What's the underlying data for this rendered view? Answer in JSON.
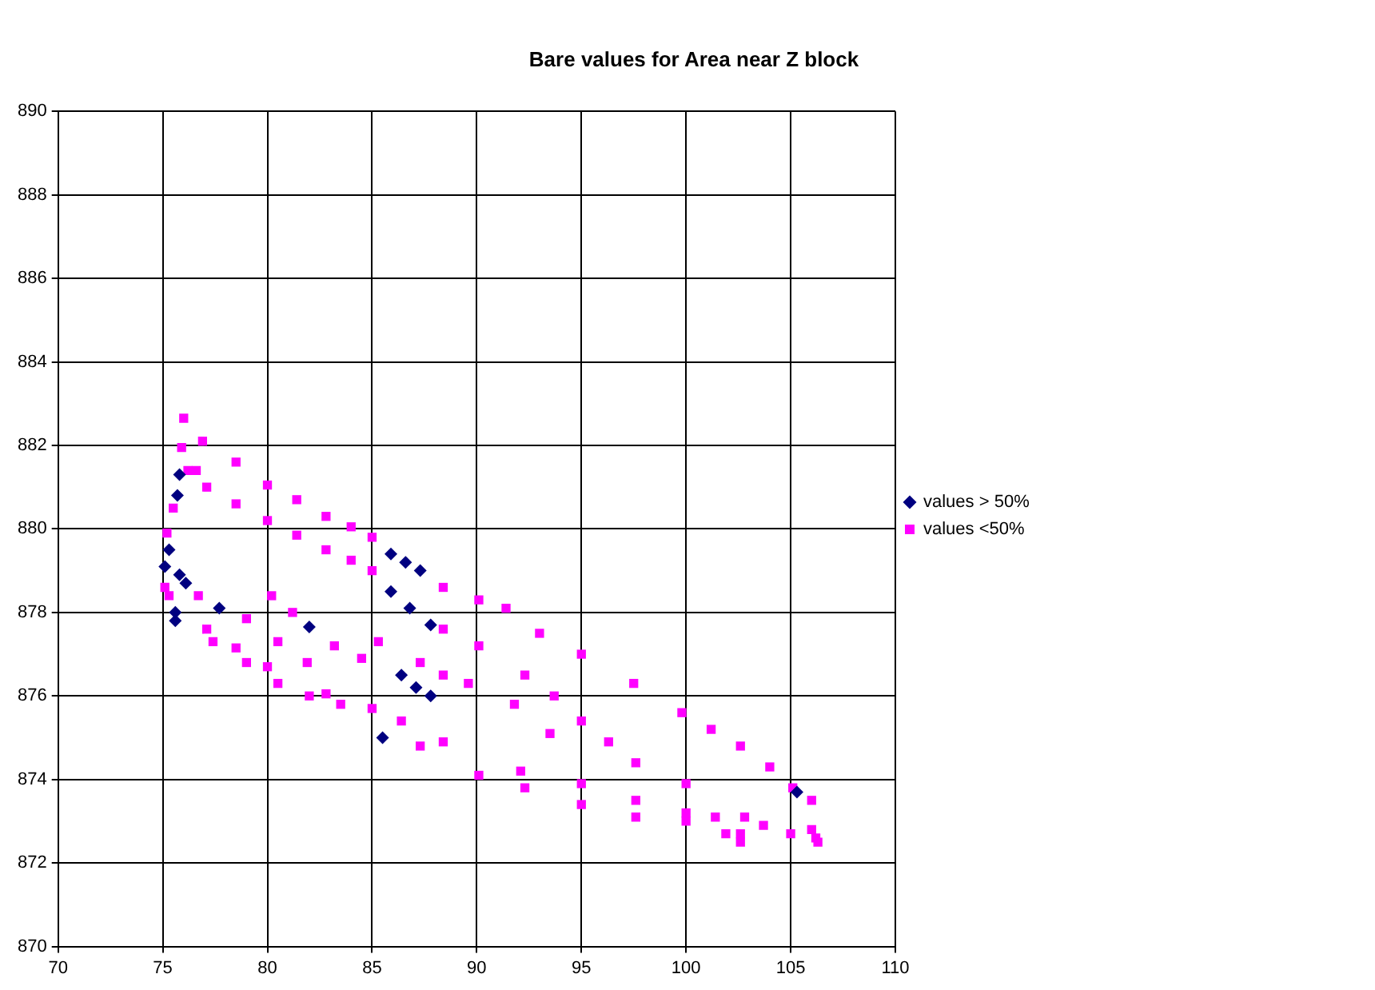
{
  "chart_data": {
    "type": "scatter",
    "title": "Bare values for Area near Z block",
    "xlim": [
      70,
      110
    ],
    "xticks": [
      70,
      75,
      80,
      85,
      90,
      95,
      100,
      105,
      110
    ],
    "ylim": [
      870,
      890
    ],
    "yticks": [
      870,
      872,
      874,
      876,
      878,
      880,
      882,
      884,
      886,
      888,
      890
    ],
    "grid": true,
    "legend": "right",
    "series": [
      {
        "name": "values > 50%",
        "color": "#000080",
        "marker": "diamond",
        "x": [
          85.9,
          86.6,
          87.3,
          85.9,
          86.8,
          87.8,
          75.8,
          75.7,
          75.3,
          75.1,
          75.8,
          76.1,
          75.6,
          75.6,
          77.7,
          82.0,
          86.4,
          87.1,
          87.8,
          85.5,
          105.3
        ],
        "values": [
          879.4,
          879.2,
          879.0,
          878.5,
          878.1,
          877.7,
          881.3,
          880.8,
          879.5,
          879.1,
          878.9,
          878.7,
          878.0,
          877.8,
          878.1,
          877.65,
          876.5,
          876.2,
          876.0,
          875.0,
          873.7
        ]
      },
      {
        "name": "values <50%",
        "color": "#ff00ff",
        "marker": "square",
        "x": [
          76.0,
          75.9,
          76.2,
          76.6,
          75.5,
          75.2,
          76.9,
          78.5,
          80.0,
          81.4,
          82.8,
          84.0,
          85.0,
          88.4,
          90.1,
          91.4,
          93.0,
          95.0,
          97.5,
          99.8,
          101.2,
          102.6,
          104.0,
          105.1,
          106.0,
          106.2,
          106.3,
          77.1,
          78.5,
          80.0,
          81.4,
          82.8,
          84.0,
          85.0,
          88.4,
          90.1,
          92.3,
          93.7,
          95.0,
          96.3,
          97.6,
          100.0,
          101.4,
          102.6,
          75.1,
          76.7,
          79.0,
          80.5,
          81.9,
          75.3,
          77.1,
          78.5,
          80.0,
          82.8,
          85.0,
          86.4,
          88.4,
          90.1,
          92.3,
          95.0,
          97.6,
          100.0,
          102.6,
          105.0,
          106.0,
          77.4,
          79.0,
          80.5,
          82.0,
          83.5,
          87.3,
          80.2,
          81.2,
          83.2,
          84.5,
          85.3,
          87.3,
          88.4,
          89.6,
          91.8,
          93.5,
          92.1,
          95.0,
          97.6,
          100.0,
          101.9,
          102.8,
          103.7
        ],
        "values": [
          882.65,
          881.95,
          881.4,
          881.4,
          880.5,
          879.9,
          882.1,
          881.6,
          881.05,
          880.7,
          880.3,
          880.05,
          879.8,
          878.6,
          878.3,
          878.1,
          877.5,
          877.0,
          876.3,
          875.6,
          875.2,
          874.8,
          874.3,
          873.8,
          873.5,
          872.6,
          872.5,
          881.0,
          880.6,
          880.2,
          879.85,
          879.5,
          879.25,
          879.0,
          877.6,
          877.2,
          876.5,
          876.0,
          875.4,
          874.9,
          874.4,
          873.9,
          873.1,
          872.5,
          878.6,
          878.4,
          877.85,
          877.3,
          876.8,
          878.4,
          877.6,
          877.15,
          876.7,
          876.05,
          875.7,
          875.4,
          874.9,
          874.1,
          873.8,
          873.4,
          873.1,
          873.0,
          872.7,
          872.7,
          872.8,
          877.3,
          876.8,
          876.3,
          876.0,
          875.8,
          874.8,
          878.4,
          878.0,
          877.2,
          876.9,
          877.3,
          876.8,
          876.5,
          876.3,
          875.8,
          875.1,
          874.2,
          873.9,
          873.5,
          873.2,
          872.7,
          873.1,
          872.9
        ]
      }
    ]
  }
}
